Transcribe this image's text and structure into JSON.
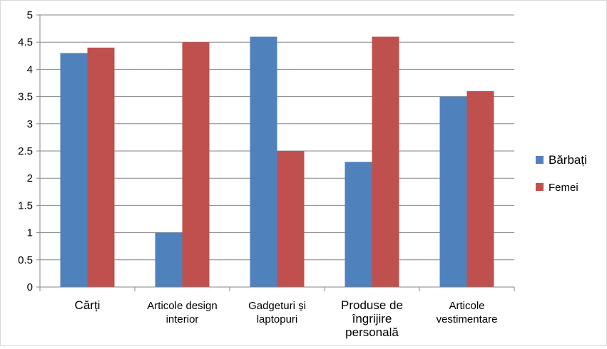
{
  "chart_data": {
    "type": "bar",
    "categories": [
      {
        "lines": [
          "Cărți"
        ],
        "size": "large"
      },
      {
        "lines": [
          "Articole design",
          "interior"
        ],
        "size": "small"
      },
      {
        "lines": [
          "Gadgeturi și",
          "laptopuri"
        ],
        "size": "small"
      },
      {
        "lines": [
          "Produse de",
          "îngrijire",
          "personală"
        ],
        "size": "large"
      },
      {
        "lines": [
          "Articole",
          "vestimentare"
        ],
        "size": "small"
      }
    ],
    "series": [
      {
        "name": "Bărbați",
        "values": [
          4.3,
          1.0,
          4.6,
          2.3,
          3.5
        ],
        "color": "#4f81bd"
      },
      {
        "name": "Femei",
        "values": [
          4.4,
          4.5,
          2.5,
          4.6,
          3.6
        ],
        "color": "#c0504d"
      }
    ],
    "ylim": [
      0,
      5
    ],
    "yticks": [
      "0",
      "0.5",
      "1",
      "1.5",
      "2",
      "2.5",
      "3",
      "3.5",
      "4",
      "4.5",
      "5"
    ],
    "grid": true,
    "legend_position": "right"
  }
}
